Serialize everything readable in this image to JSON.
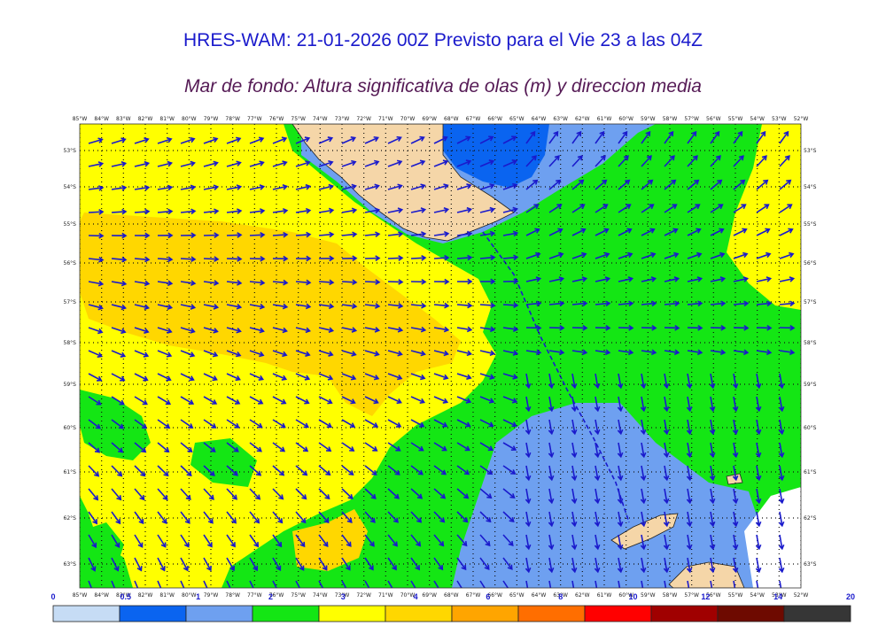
{
  "title": "HRES-WAM: 21-01-2026 00Z Previsto para el Vie 23 a las 04Z",
  "subtitle": "Mar de fondo: Altura significativa de olas (m) y direccion media",
  "map": {
    "lon_labels": [
      "85°W",
      "84°W",
      "83°W",
      "82°W",
      "81°W",
      "80°W",
      "79°W",
      "78°W",
      "77°W",
      "76°W",
      "75°W",
      "74°W",
      "73°W",
      "72°W",
      "71°W",
      "70°W",
      "69°W",
      "68°W",
      "67°W",
      "66°W",
      "65°W",
      "64°W",
      "63°W",
      "62°W",
      "61°W",
      "60°W",
      "59°W",
      "58°W",
      "57°W",
      "56°W",
      "55°W",
      "54°W",
      "53°W",
      "52°W"
    ],
    "lat_labels": [
      "53°S",
      "54°S",
      "55°S",
      "56°S",
      "57°S",
      "58°S",
      "59°S",
      "60°S",
      "61°S",
      "62°S",
      "63°S"
    ],
    "colors": {
      "land": "#f5d6a8",
      "arrow": "#1a1acc",
      "route": "#1a1acc"
    }
  },
  "colorbar": {
    "labels": [
      "0",
      "0.5",
      "1",
      "2",
      "3",
      "4",
      "6",
      "8",
      "10",
      "12",
      "14",
      "20"
    ],
    "colors": [
      "#c6dcf5",
      "#0a64f0",
      "#6ea0f0",
      "#14e614",
      "#ffff00",
      "#ffd700",
      "#ffa500",
      "#ff6e00",
      "#ff0000",
      "#a00000",
      "#6e0a00",
      "#363636"
    ]
  }
}
